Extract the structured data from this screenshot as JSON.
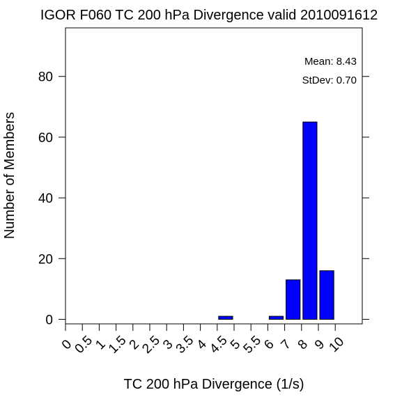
{
  "chart_data": {
    "type": "bar",
    "title": "IGOR F060 TC 200 hPa Divergence valid 2010091612",
    "xlabel": "TC 200 hPa Divergence (1/s)",
    "ylabel": "Number of Members",
    "categories": [
      "0",
      "0.5",
      "1",
      "1.5",
      "2",
      "2.5",
      "3",
      "3.5",
      "4",
      "4.5",
      "5",
      "5.5",
      "6",
      "7",
      "8",
      "9",
      "10"
    ],
    "bins": [
      {
        "from": "0",
        "to": "0.5",
        "value": 0
      },
      {
        "from": "0.5",
        "to": "1",
        "value": 0
      },
      {
        "from": "1",
        "to": "1.5",
        "value": 0
      },
      {
        "from": "1.5",
        "to": "2",
        "value": 0
      },
      {
        "from": "2",
        "to": "2.5",
        "value": 0
      },
      {
        "from": "2.5",
        "to": "3",
        "value": 0
      },
      {
        "from": "3",
        "to": "3.5",
        "value": 0
      },
      {
        "from": "3.5",
        "to": "4",
        "value": 0
      },
      {
        "from": "4",
        "to": "4.5",
        "value": 0
      },
      {
        "from": "4.5",
        "to": "5",
        "value": 1
      },
      {
        "from": "5",
        "to": "5.5",
        "value": 0
      },
      {
        "from": "5.5",
        "to": "6",
        "value": 0
      },
      {
        "from": "6",
        "to": "7",
        "value": 1
      },
      {
        "from": "7",
        "to": "8",
        "value": 13
      },
      {
        "from": "8",
        "to": "9",
        "value": 65
      },
      {
        "from": "9",
        "to": "10",
        "value": 16
      }
    ],
    "yticks": [
      0,
      20,
      40,
      60,
      80
    ],
    "ylim": [
      -1.5,
      96
    ],
    "bar_color": "#0000ff",
    "grid": false,
    "stats": {
      "mean_label": "Mean: 8.43",
      "stdev_label": "StDev: 0.70"
    }
  }
}
